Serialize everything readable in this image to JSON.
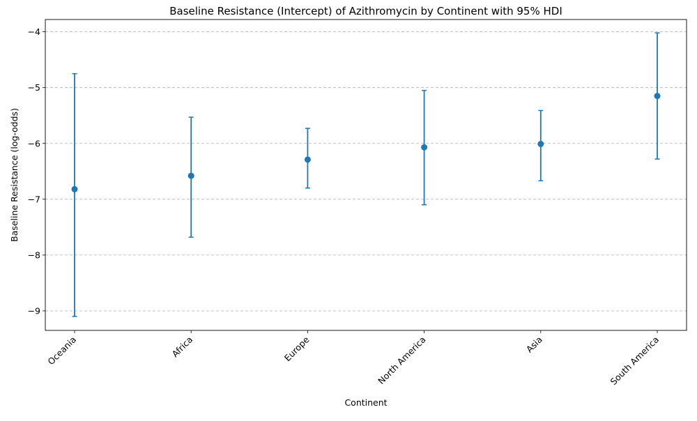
{
  "chart_data": {
    "type": "scatter",
    "title": "Baseline Resistance (Intercept) of Azithromycin by Continent with 95% HDI",
    "xlabel": "Continent",
    "ylabel": "Baseline Resistance (log-odds)",
    "categories": [
      "Oceania",
      "Africa",
      "Europe",
      "North America",
      "Asia",
      "South America"
    ],
    "values": [
      -6.82,
      -6.58,
      -6.29,
      -6.07,
      -6.01,
      -5.15
    ],
    "hdi_lower": [
      -9.1,
      -7.68,
      -6.8,
      -7.1,
      -6.67,
      -6.28
    ],
    "hdi_upper": [
      -4.75,
      -5.53,
      -5.73,
      -5.05,
      -5.41,
      -4.02
    ],
    "ylim": [
      -9.35,
      -3.78
    ],
    "yticks": [
      -9,
      -8,
      -7,
      -6,
      -5,
      -4
    ],
    "grid": "horizontal dashed",
    "color": "#1f77b4"
  }
}
